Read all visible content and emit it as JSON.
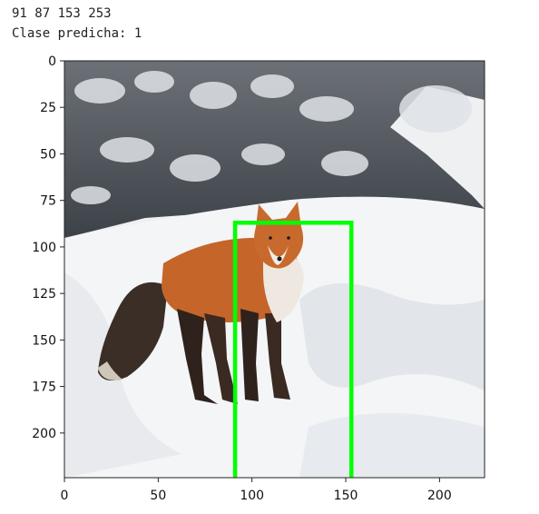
{
  "output": {
    "bbox_line": "91 87 153 253",
    "prediction_line": "Clase predicha: 1"
  },
  "chart_data": {
    "type": "image",
    "xlim": [
      0,
      224
    ],
    "ylim": [
      224,
      0
    ],
    "x_ticks": [
      0,
      50,
      100,
      150,
      200
    ],
    "y_ticks": [
      0,
      25,
      50,
      75,
      100,
      125,
      150,
      175,
      200
    ],
    "bounding_box": {
      "x_min": 91,
      "y_min": 87,
      "x_max": 153,
      "y_max": 253,
      "color": "#00ff00"
    },
    "image_content": "fox-in-snow"
  },
  "colors": {
    "snow": "#e9ecef",
    "trees": "#5b6066",
    "fox_body": "#c0612a",
    "fox_dark": "#3a2a22",
    "box": "#00ff00"
  }
}
